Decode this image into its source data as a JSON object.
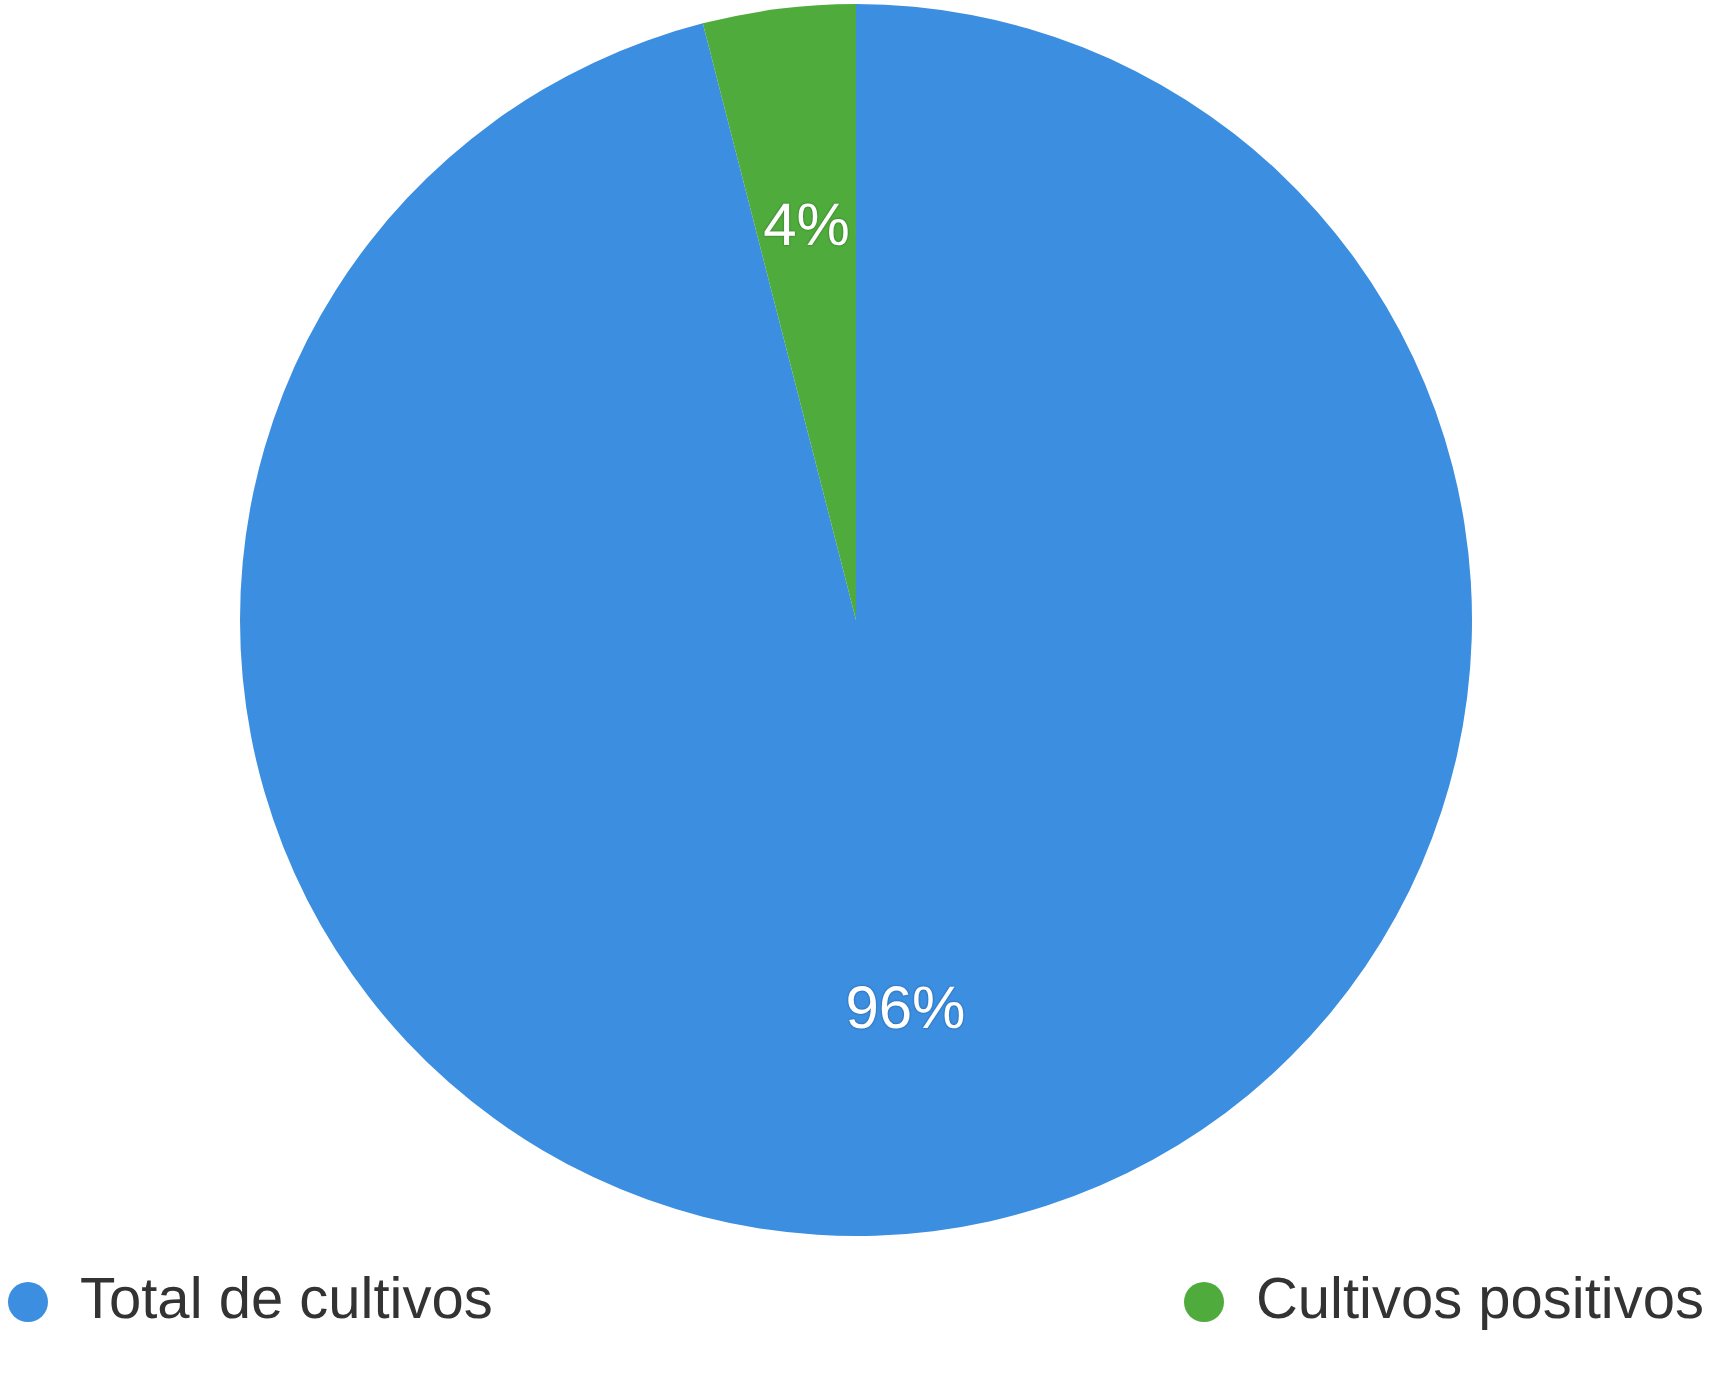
{
  "chart_data": {
    "type": "pie",
    "categories": [
      "Total de cultivos",
      "Cultivos positivos"
    ],
    "values": [
      96,
      4
    ],
    "colors": [
      "#3b8ee0",
      "#4eab3c"
    ],
    "value_labels": [
      "96%",
      "4%"
    ],
    "legend": "bottom"
  }
}
